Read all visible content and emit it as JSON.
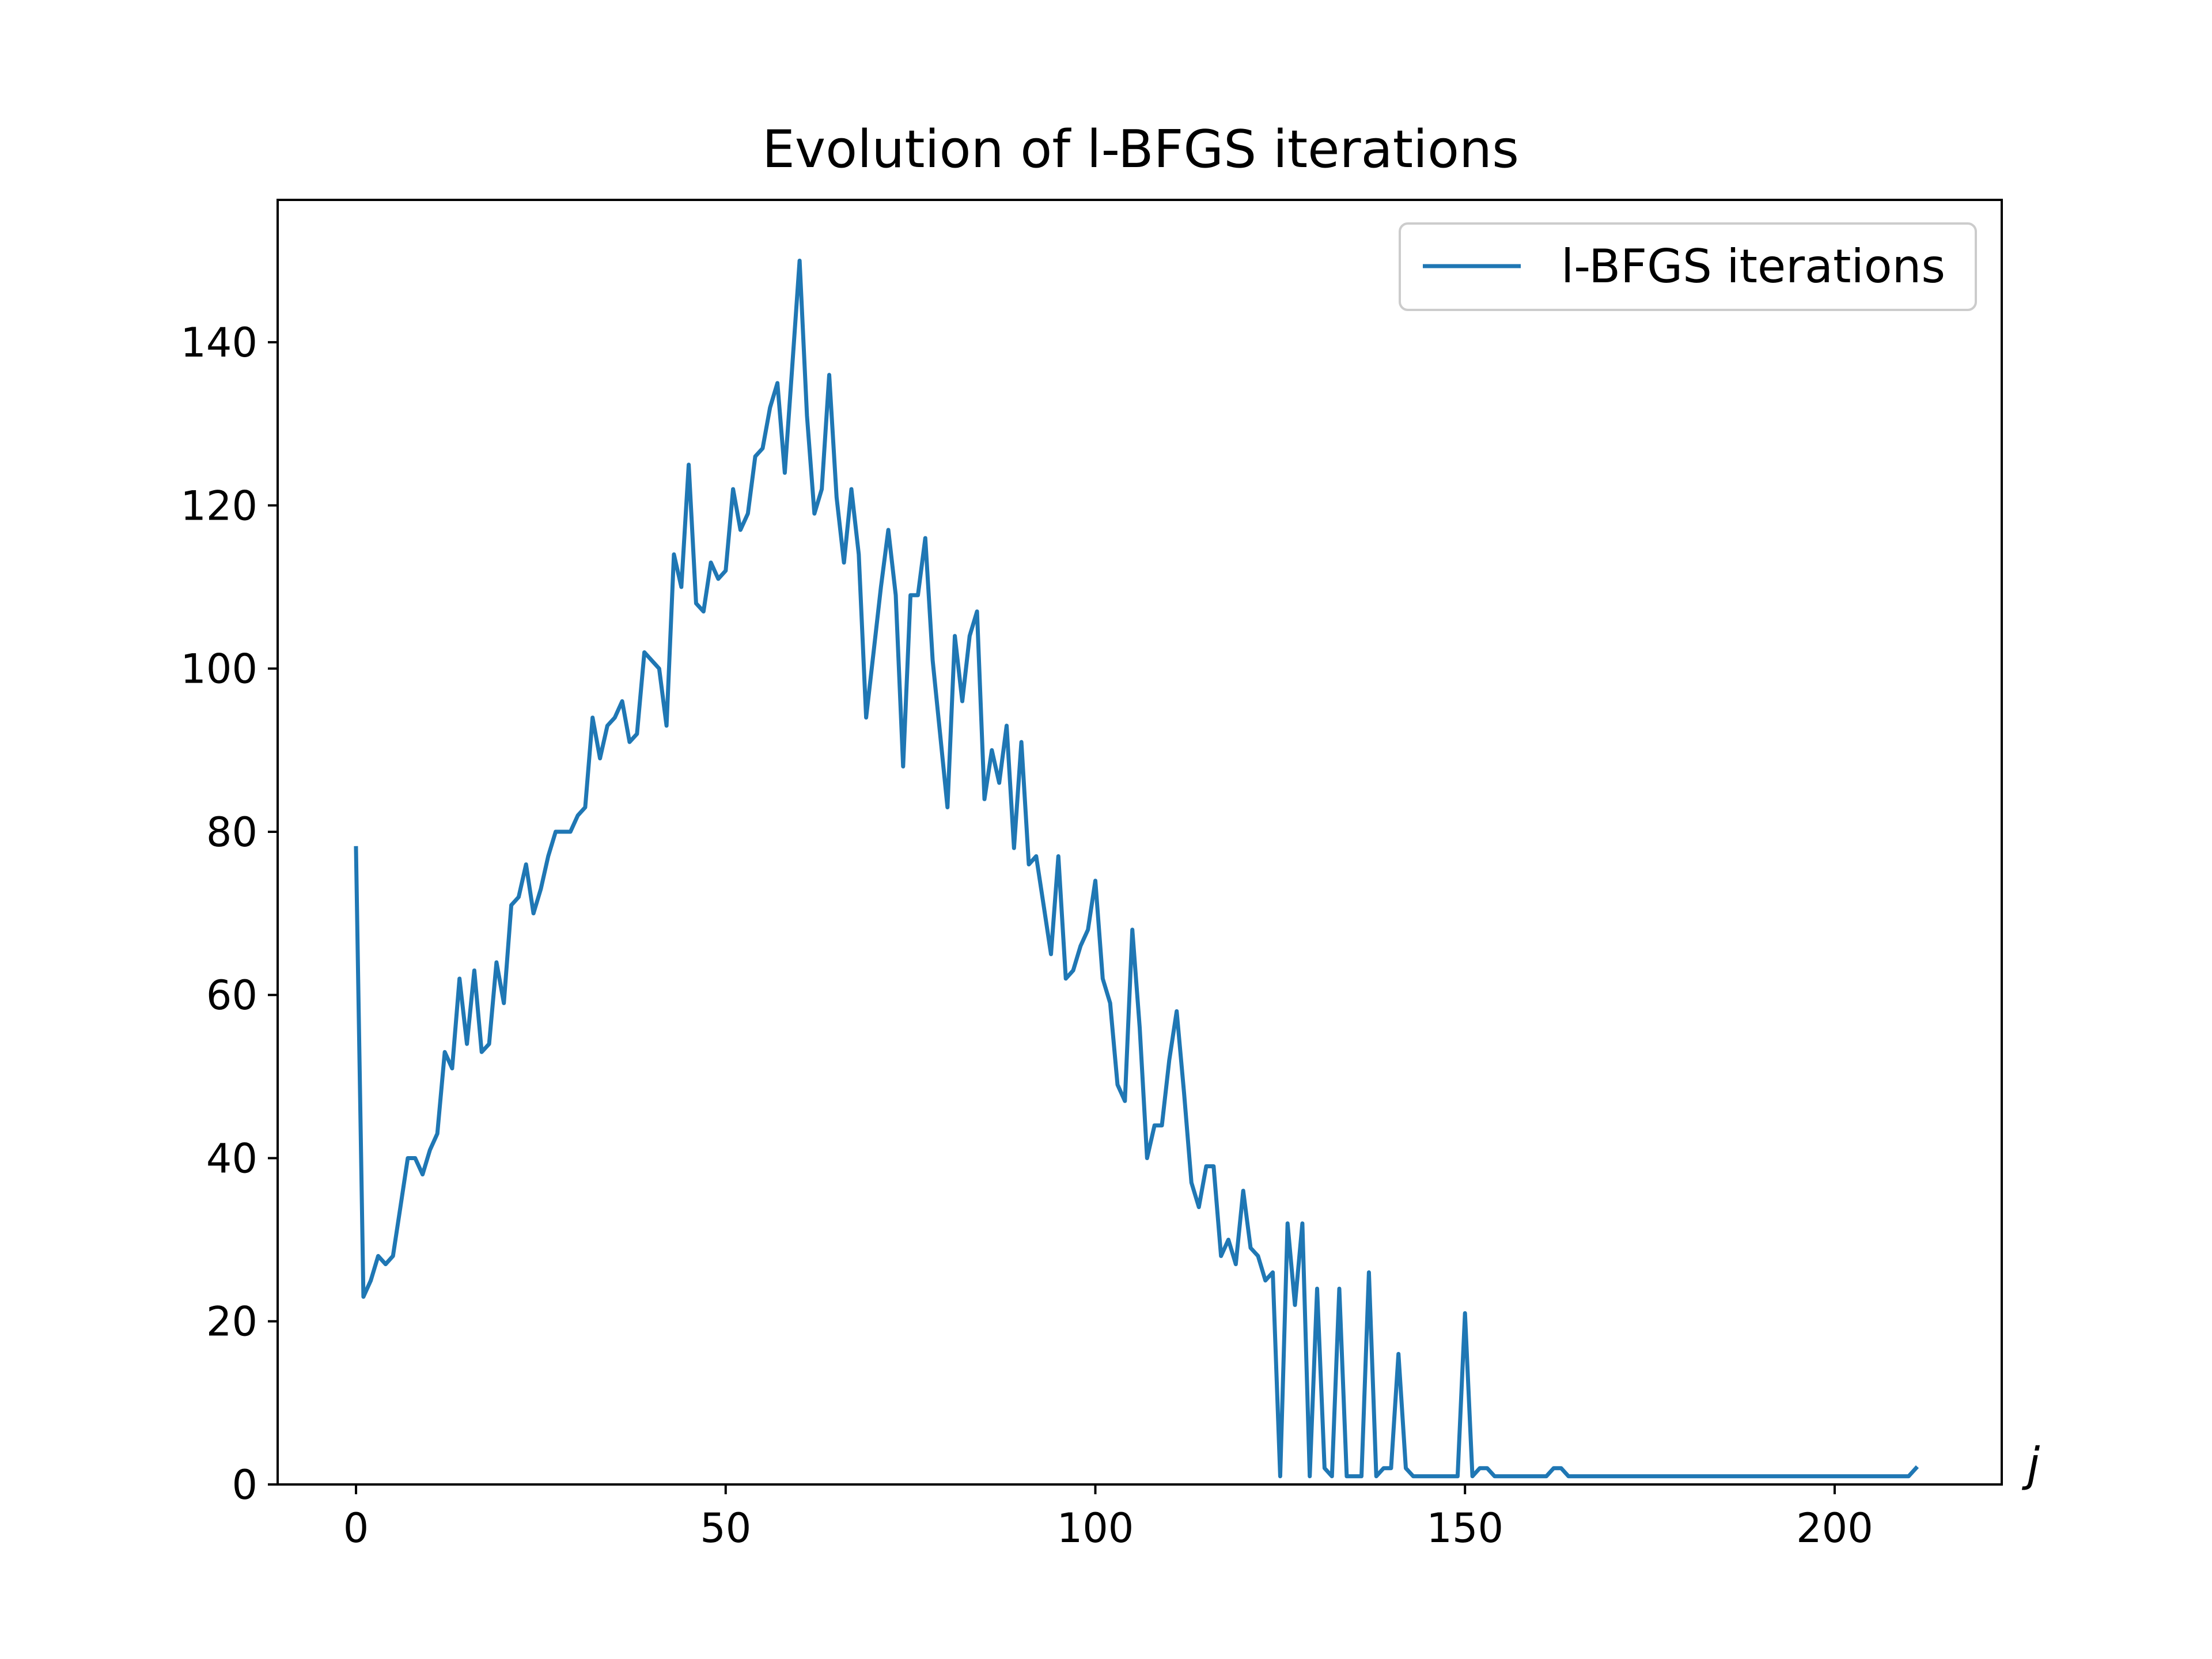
{
  "chart_data": {
    "type": "line",
    "title": "Evolution of l-BFGS iterations",
    "xlabel": "j",
    "ylabel": "",
    "xlim": [
      -10.6,
      222.6
    ],
    "ylim": [
      0,
      157.45
    ],
    "xticks": [
      0,
      50,
      100,
      150,
      200
    ],
    "yticks": [
      0,
      20,
      40,
      60,
      80,
      100,
      120,
      140
    ],
    "grid": false,
    "legend_position": "top-right",
    "colors": {
      "series": "#1f77b4",
      "axes": "#000000",
      "legend_border": "#cccccc"
    },
    "series": [
      {
        "name": "l-BFGS iterations",
        "color": "#1f77b4",
        "x": [
          0,
          1,
          2,
          3,
          4,
          5,
          6,
          7,
          8,
          9,
          10,
          11,
          12,
          13,
          14,
          15,
          16,
          17,
          18,
          19,
          20,
          21,
          22,
          23,
          24,
          25,
          26,
          27,
          28,
          29,
          30,
          31,
          32,
          33,
          34,
          35,
          36,
          37,
          38,
          39,
          40,
          41,
          42,
          43,
          44,
          45,
          46,
          47,
          48,
          49,
          50,
          51,
          52,
          53,
          54,
          55,
          56,
          57,
          58,
          59,
          60,
          61,
          62,
          63,
          64,
          65,
          66,
          67,
          68,
          69,
          70,
          71,
          72,
          73,
          74,
          75,
          76,
          77,
          78,
          79,
          80,
          81,
          82,
          83,
          84,
          85,
          86,
          87,
          88,
          89,
          90,
          91,
          92,
          93,
          94,
          95,
          96,
          97,
          98,
          99,
          100,
          101,
          102,
          103,
          104,
          105,
          106,
          107,
          108,
          109,
          110,
          111,
          112,
          113,
          114,
          115,
          116,
          117,
          118,
          119,
          120,
          121,
          122,
          123,
          124,
          125,
          126,
          127,
          128,
          129,
          130,
          131,
          132,
          133,
          134,
          135,
          136,
          137,
          138,
          139,
          140,
          141,
          142,
          143,
          144,
          145,
          146,
          147,
          148,
          149,
          150,
          151,
          152,
          153,
          154,
          155,
          156,
          157,
          158,
          159,
          160,
          161,
          162,
          163,
          164,
          165,
          166,
          167,
          168,
          169,
          170,
          171,
          172,
          173,
          174,
          175,
          176,
          177,
          178,
          179,
          180,
          181,
          182,
          183,
          184,
          185,
          186,
          187,
          188,
          189,
          190,
          191,
          192,
          193,
          194,
          195,
          196,
          197,
          198,
          199,
          200,
          201,
          202,
          203,
          204,
          205,
          206,
          207,
          208,
          209,
          210,
          211
        ],
        "y": [
          78,
          23,
          25,
          28,
          27,
          28,
          34,
          40,
          40,
          38,
          41,
          43,
          53,
          51,
          62,
          54,
          63,
          53,
          54,
          64,
          59,
          71,
          72,
          76,
          70,
          73,
          77,
          80,
          80,
          80,
          82,
          83,
          94,
          89,
          93,
          94,
          96,
          91,
          92,
          102,
          101,
          100,
          93,
          114,
          110,
          125,
          108,
          107,
          113,
          111,
          112,
          122,
          117,
          119,
          126,
          127,
          132,
          135,
          124,
          137,
          150,
          131,
          119,
          122,
          136,
          121,
          113,
          122,
          114,
          94,
          102,
          110,
          117,
          109,
          88,
          109,
          109,
          116,
          101,
          92,
          83,
          104,
          96,
          104,
          107,
          84,
          90,
          86,
          93,
          78,
          91,
          76,
          77,
          71,
          65,
          77,
          62,
          63,
          66,
          68,
          74,
          62,
          59,
          49,
          47,
          68,
          56,
          40,
          44,
          44,
          52,
          58,
          48,
          37,
          34,
          39,
          39,
          28,
          30,
          27,
          36,
          29,
          28,
          25,
          26,
          1,
          32,
          22,
          32,
          1,
          24,
          2,
          1,
          24,
          1,
          1,
          1,
          26,
          1,
          2,
          2,
          16,
          2,
          1,
          1,
          1,
          1,
          1,
          1,
          1,
          21,
          1,
          2,
          2,
          1,
          1,
          1,
          1,
          1,
          1,
          1,
          1,
          2,
          2,
          1,
          1,
          1,
          1,
          1,
          1,
          1,
          1,
          1,
          1,
          1,
          1,
          1,
          1,
          1,
          1,
          1,
          1,
          1,
          1,
          1,
          1,
          1,
          1,
          1,
          1,
          1,
          1,
          1,
          1,
          1,
          1,
          1,
          1,
          1,
          1,
          1,
          1,
          1,
          1,
          1,
          1,
          1,
          1,
          1,
          1,
          1,
          2
        ]
      }
    ]
  }
}
